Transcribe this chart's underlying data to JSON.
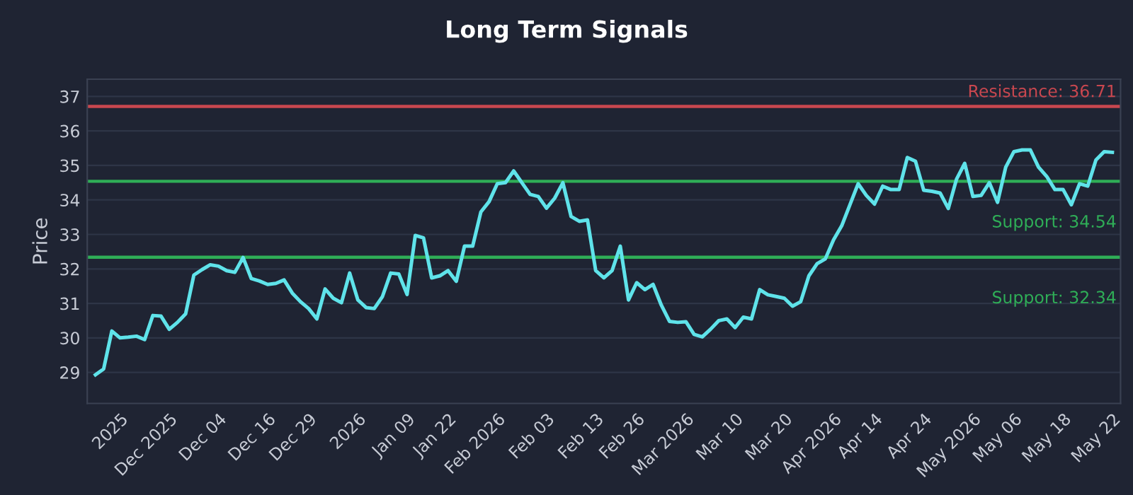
{
  "chart_data": {
    "type": "line",
    "title": "Long Term Signals",
    "ylabel": "Price",
    "categories": [
      null,
      null,
      null,
      "2025",
      null,
      null,
      null,
      null,
      null,
      "Dec 2025",
      null,
      null,
      null,
      null,
      null,
      "Dec 04",
      null,
      null,
      null,
      null,
      null,
      "Dec 16",
      null,
      null,
      null,
      null,
      "Dec 29",
      null,
      null,
      null,
      null,
      null,
      "2026",
      null,
      null,
      null,
      null,
      null,
      "Jan 09",
      null,
      null,
      null,
      null,
      "Jan 22",
      null,
      null,
      null,
      null,
      null,
      "Feb 2026",
      null,
      null,
      null,
      null,
      null,
      "Feb 03",
      null,
      null,
      null,
      null,
      null,
      "Feb 13",
      null,
      null,
      null,
      null,
      "Feb 26",
      null,
      null,
      null,
      null,
      null,
      "Mar 2026",
      null,
      null,
      null,
      null,
      null,
      "Mar 10",
      null,
      null,
      null,
      null,
      null,
      "Mar 20",
      null,
      null,
      null,
      null,
      null,
      "Apr 2026",
      null,
      null,
      null,
      null,
      "Apr 14",
      null,
      null,
      null,
      null,
      null,
      "Apr 24",
      null,
      null,
      null,
      null,
      null,
      "May 2026",
      null,
      null,
      null,
      null,
      "May 06",
      null,
      null,
      null,
      null,
      null,
      "May 18",
      null,
      null,
      null,
      null,
      null,
      "May 22"
    ],
    "series": [
      {
        "color": "#5fe3ea",
        "values": [
          28.93,
          29.1,
          30.2,
          30.0,
          30.02,
          30.05,
          29.95,
          30.65,
          30.63,
          30.25,
          30.45,
          30.7,
          31.82,
          31.98,
          32.12,
          32.08,
          31.95,
          31.9,
          32.33,
          31.72,
          31.65,
          31.55,
          31.58,
          31.68,
          31.3,
          31.05,
          30.85,
          30.55,
          31.42,
          31.15,
          31.02,
          31.88,
          31.1,
          30.88,
          30.85,
          31.2,
          31.88,
          31.85,
          31.26,
          32.97,
          32.9,
          31.74,
          31.8,
          31.95,
          31.64,
          32.66,
          32.66,
          33.65,
          33.95,
          34.47,
          34.5,
          34.84,
          34.5,
          34.16,
          34.1,
          33.76,
          34.05,
          34.5,
          33.52,
          33.38,
          33.42,
          31.95,
          31.74,
          31.95,
          32.66,
          31.1,
          31.6,
          31.4,
          31.55,
          30.95,
          30.48,
          30.45,
          30.47,
          30.1,
          30.03,
          30.25,
          30.5,
          30.55,
          30.3,
          30.6,
          30.55,
          31.4,
          31.25,
          31.2,
          31.15,
          30.92,
          31.05,
          31.8,
          32.15,
          32.29,
          32.84,
          33.25,
          33.86,
          34.47,
          34.13,
          33.88,
          34.4,
          34.3,
          34.3,
          35.23,
          35.12,
          34.28,
          34.25,
          34.2,
          33.75,
          34.6,
          35.06,
          34.1,
          34.13,
          34.5,
          33.93,
          34.95,
          35.4,
          35.45,
          35.45,
          34.95,
          34.68,
          34.3,
          34.3,
          33.86,
          34.47,
          34.4,
          35.16,
          35.4,
          35.38
        ]
      }
    ],
    "ylim": [
      28.1,
      37.5
    ],
    "yticks": [
      29,
      30,
      31,
      32,
      33,
      34,
      35,
      36,
      37
    ],
    "grid": "y",
    "legend": false,
    "marker": "none",
    "line_style": "solid",
    "ref_lines": [
      {
        "axis": "y",
        "value": 36.71,
        "label": "Resistance: 36.71",
        "color": "#c9474f"
      },
      {
        "axis": "y",
        "value": 34.54,
        "label": "Support: 34.54",
        "color": "#2fae57"
      },
      {
        "axis": "y",
        "value": 32.34,
        "label": "Support: 32.34",
        "color": "#2fae57"
      }
    ]
  }
}
